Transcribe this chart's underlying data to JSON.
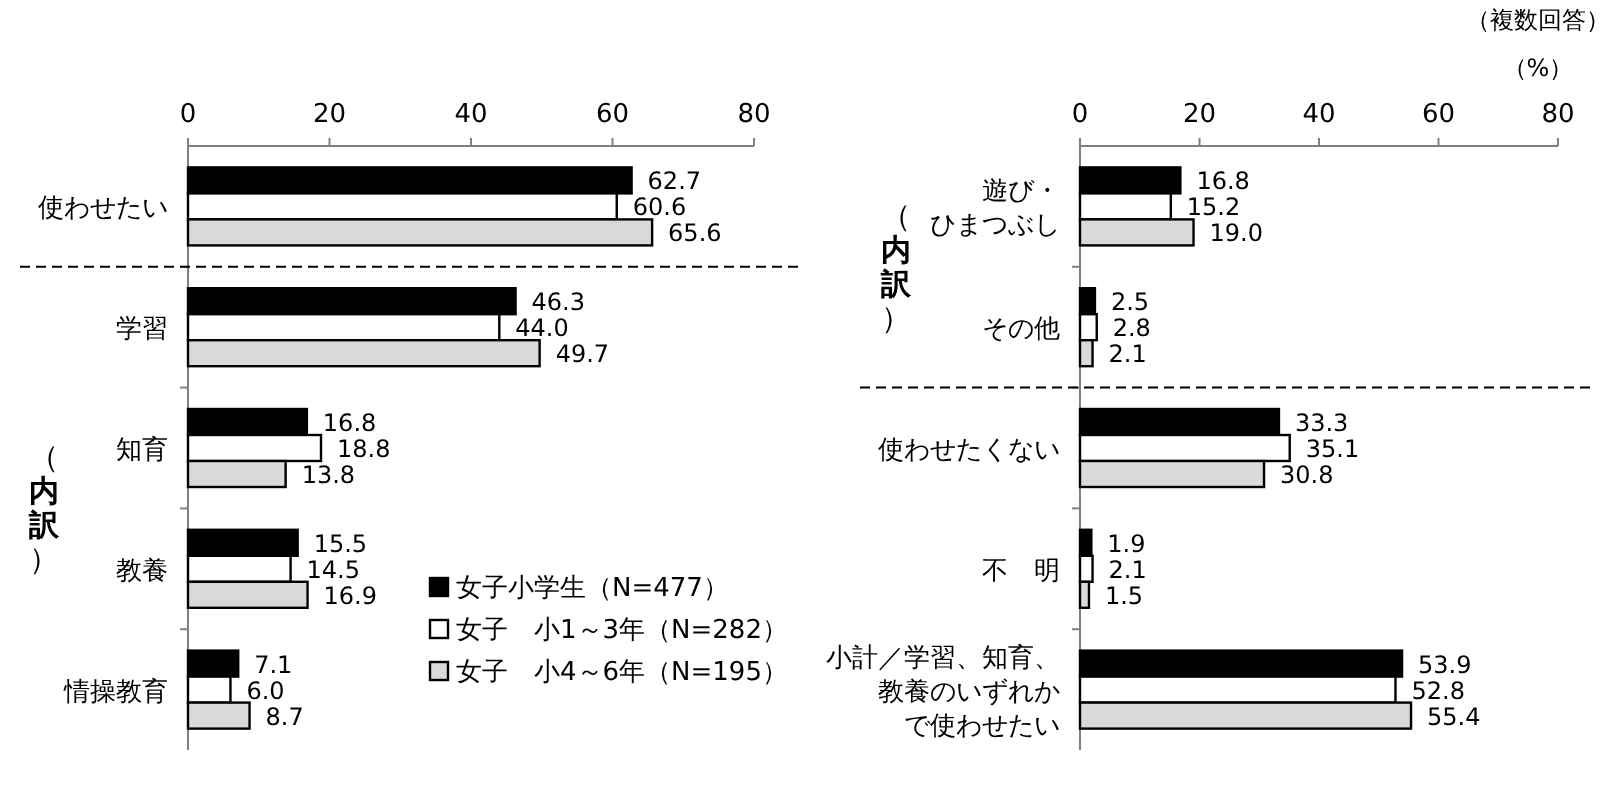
{
  "chart_data": [
    {
      "type": "bar",
      "orientation": "horizontal",
      "categories": [
        "使わせたい",
        "学習",
        "知育",
        "教養",
        "情操教育"
      ],
      "series": [
        {
          "name": "女子小学生（N=477）",
          "color": "#000000",
          "values": [
            62.7,
            46.3,
            16.8,
            15.5,
            7.1
          ],
          "value_labels": [
            "62.7",
            "46.3",
            "16.8",
            "15.5",
            "7.1"
          ]
        },
        {
          "name": "女子　小1～3年（N=282）",
          "color": "#ffffff",
          "values": [
            60.6,
            44.0,
            18.8,
            14.5,
            6.0
          ],
          "value_labels": [
            "60.6",
            "44.0",
            "18.8",
            "14.5",
            "6.0"
          ]
        },
        {
          "name": "女子　小4～6年（N=195）",
          "color": "#d9d9d9",
          "values": [
            65.6,
            49.7,
            13.8,
            16.9,
            8.7
          ],
          "value_labels": [
            "65.6",
            "49.7",
            "13.8",
            "16.9",
            "8.7"
          ]
        }
      ],
      "xlim": [
        0,
        80
      ],
      "xticks": [
        0,
        20,
        40,
        60,
        80
      ],
      "grid": false,
      "legend": "bottom right",
      "annotations": [
        "（内訳）"
      ]
    },
    {
      "type": "bar",
      "orientation": "horizontal",
      "categories": [
        "遊び・ひまつぶし",
        "その他",
        "使わせたくない",
        "不　明",
        "小計／学習、知育、教養のいずれかで使わせたい"
      ],
      "series": [
        {
          "color": "#000000",
          "values": [
            16.8,
            2.5,
            33.3,
            1.9,
            53.9
          ],
          "value_labels": [
            "16.8",
            "2.5",
            "33.3",
            "1.9",
            "53.9"
          ]
        },
        {
          "color": "#ffffff",
          "values": [
            15.2,
            2.8,
            35.1,
            2.1,
            52.8
          ],
          "value_labels": [
            "15.2",
            "2.8",
            "35.1",
            "2.1",
            "52.8"
          ]
        },
        {
          "color": "#d9d9d9",
          "values": [
            19.0,
            2.1,
            30.8,
            1.5,
            55.4
          ],
          "value_labels": [
            "19.0",
            "2.1",
            "30.8",
            "1.5",
            "55.4"
          ]
        }
      ],
      "xlim": [
        0,
        80
      ],
      "xticks": [
        0,
        20,
        40,
        60,
        80
      ],
      "grid": false,
      "legend": false,
      "xlabel": "（%）",
      "annotations": [
        "（内訳）",
        "（複数回答）"
      ]
    }
  ]
}
